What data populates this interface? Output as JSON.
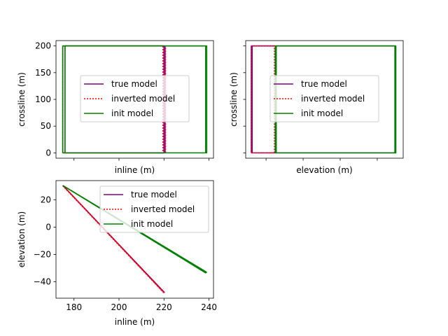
{
  "chart_data": [
    {
      "type": "line",
      "xlabel": "inline (m)",
      "ylabel": "crossline (m)",
      "xlim": [
        172,
        242
      ],
      "ylim": [
        -10,
        210
      ],
      "yticks": [
        0,
        50,
        100,
        150,
        200
      ],
      "xticks": [
        180,
        200,
        220,
        240
      ],
      "show_xtick_labels": false,
      "legend_loc": "center",
      "grid": false,
      "series": [
        {
          "name": "true model",
          "style": "solid",
          "color": "#800080",
          "width": 1.5,
          "paths": [
            {
              "x": [
                175,
                175,
                220,
                220,
                175
              ],
              "y": [
                0,
                200,
                200,
                0,
                0
              ]
            },
            {
              "x": [
                176,
                176,
                220,
                220,
                176
              ],
              "y": [
                0,
                200,
                200,
                0,
                0
              ]
            },
            {
              "x": [
                220.5,
                220.5
              ],
              "y": [
                0,
                200
              ]
            }
          ]
        },
        {
          "name": "inverted model",
          "style": "dotted",
          "color": "#ff0000",
          "width": 1.5,
          "paths": [
            {
              "x": [
                175,
                175,
                219.5,
                219.5,
                175
              ],
              "y": [
                0,
                200,
                200,
                0,
                0
              ]
            },
            {
              "x": [
                220.7,
                220.7
              ],
              "y": [
                0,
                200
              ]
            }
          ]
        },
        {
          "name": "init model",
          "style": "solid",
          "color": "#008000",
          "width": 1.5,
          "paths": [
            {
              "x": [
                175,
                175,
                239,
                239,
                175
              ],
              "y": [
                0,
                200,
                200,
                0,
                0
              ]
            },
            {
              "x": [
                176,
                176,
                238.5,
                238.5
              ],
              "y": [
                0,
                200,
                200,
                0
              ]
            }
          ]
        }
      ]
    },
    {
      "type": "line",
      "xlabel": "elevation (m)",
      "ylabel": "crossline (m)",
      "xlim": [
        -51,
        34
      ],
      "ylim": [
        -10,
        210
      ],
      "yticks": [
        0,
        50,
        100,
        150,
        200
      ],
      "xticks": [
        -40,
        -20,
        0,
        20
      ],
      "show_xtick_labels": false,
      "show_ytick_labels": false,
      "legend_loc": "center",
      "grid": false,
      "series": [
        {
          "name": "true model",
          "style": "solid",
          "color": "#800080",
          "width": 1.5,
          "paths": [
            {
              "x": [
                -48,
                -48,
                30,
                30,
                -48
              ],
              "y": [
                0,
                200,
                200,
                0,
                0
              ]
            },
            {
              "x": [
                -47.5,
                -47.5,
                -35,
                -35
              ],
              "y": [
                0,
                200,
                200,
                0
              ]
            }
          ]
        },
        {
          "name": "inverted model",
          "style": "dotted",
          "color": "#ff0000",
          "width": 1.5,
          "paths": [
            {
              "x": [
                -47.8,
                -47.8,
                -35.5,
                -35.5,
                -47.8
              ],
              "y": [
                0,
                200,
                200,
                0,
                0
              ]
            }
          ]
        },
        {
          "name": "init model",
          "style": "solid",
          "color": "#008000",
          "width": 1.5,
          "paths": [
            {
              "x": [
                -35,
                -35,
                30,
                30,
                -35
              ],
              "y": [
                0,
                200,
                200,
                0,
                0
              ]
            },
            {
              "x": [
                -34.5,
                -34.5,
                29.5,
                29.5
              ],
              "y": [
                0,
                200,
                200,
                0
              ]
            }
          ]
        }
      ]
    },
    {
      "type": "line",
      "xlabel": "inline (m)",
      "ylabel": "elevation (m)",
      "xlim": [
        172,
        242
      ],
      "ylim": [
        -52,
        34
      ],
      "xticks": [
        180,
        200,
        220,
        240
      ],
      "yticks": [
        -40,
        -20,
        0,
        20
      ],
      "legend_loc": "upper right",
      "grid": false,
      "series": [
        {
          "name": "true model",
          "style": "solid",
          "color": "#800080",
          "width": 1.5,
          "paths": [
            {
              "x": [
                175,
                220
              ],
              "y": [
                30.5,
                -47.5
              ]
            },
            {
              "x": [
                175.3,
                220.3
              ],
              "y": [
                30,
                -48
              ]
            }
          ]
        },
        {
          "name": "inverted model",
          "style": "dotted",
          "color": "#ff0000",
          "width": 1.5,
          "paths": [
            {
              "x": [
                175,
                219.8
              ],
              "y": [
                30.2,
                -47.8
              ]
            },
            {
              "x": [
                175.5,
                220
              ],
              "y": [
                29.8,
                -48
              ]
            }
          ]
        },
        {
          "name": "init model",
          "style": "solid",
          "color": "#008000",
          "width": 1.5,
          "paths": [
            {
              "x": [
                175,
                239
              ],
              "y": [
                30.5,
                -33
              ]
            },
            {
              "x": [
                175.4,
                239
              ],
              "y": [
                30,
                -33.5
              ]
            },
            {
              "x": [
                175.8,
                238.6
              ],
              "y": [
                29.6,
                -33.6
              ]
            }
          ]
        }
      ]
    }
  ]
}
